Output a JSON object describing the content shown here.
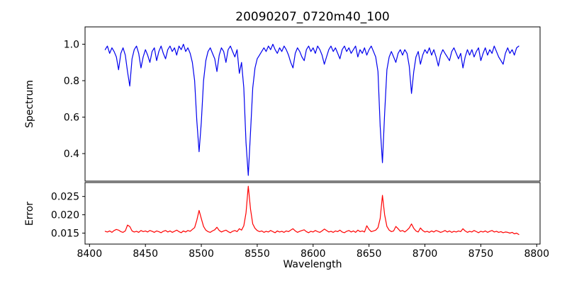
{
  "figure": {
    "background": "#ffffff",
    "axis_color": "#000000"
  },
  "chart_data": [
    {
      "type": "line",
      "title": "20090207_0720m40_100",
      "xlabel": "",
      "ylabel": "Spectrum",
      "grid": false,
      "legend": "none",
      "xlim": [
        8396,
        8803
      ],
      "ylim": [
        0.249,
        1.095
      ],
      "yticks": [
        1.0,
        0.8,
        0.6,
        0.4
      ],
      "ytick_labels": [
        "1.0",
        "0.8",
        "0.6",
        "0.4"
      ],
      "xticks": [],
      "xtick_labels": [],
      "annotations": [
        "strong absorption lines near 8498, 8542, 8662"
      ],
      "series": [
        {
          "name": "spectrum",
          "color": "#0000ee",
          "x_start": 8414,
          "x_step": 2,
          "y": [
            0.97,
            0.99,
            0.95,
            0.98,
            0.96,
            0.93,
            0.86,
            0.95,
            0.98,
            0.94,
            0.85,
            0.77,
            0.92,
            0.97,
            0.99,
            0.95,
            0.87,
            0.93,
            0.97,
            0.94,
            0.9,
            0.96,
            0.98,
            0.91,
            0.96,
            0.99,
            0.95,
            0.92,
            0.97,
            0.99,
            0.96,
            0.98,
            0.94,
            0.99,
            0.97,
            1.0,
            0.96,
            0.98,
            0.95,
            0.9,
            0.8,
            0.58,
            0.41,
            0.57,
            0.8,
            0.91,
            0.96,
            0.98,
            0.95,
            0.92,
            0.85,
            0.94,
            0.98,
            0.96,
            0.9,
            0.97,
            0.99,
            0.96,
            0.93,
            0.97,
            0.84,
            0.9,
            0.76,
            0.46,
            0.28,
            0.52,
            0.76,
            0.87,
            0.92,
            0.94,
            0.96,
            0.98,
            0.96,
            0.99,
            0.97,
            1.0,
            0.97,
            0.95,
            0.98,
            0.96,
            0.99,
            0.97,
            0.94,
            0.9,
            0.87,
            0.95,
            0.98,
            0.96,
            0.93,
            0.91,
            0.97,
            0.99,
            0.96,
            0.98,
            0.95,
            0.99,
            0.97,
            0.94,
            0.89,
            0.93,
            0.97,
            0.99,
            0.96,
            0.98,
            0.95,
            0.92,
            0.97,
            0.99,
            0.96,
            0.98,
            0.95,
            0.97,
            0.99,
            0.93,
            0.97,
            0.95,
            0.98,
            0.94,
            0.97,
            0.99,
            0.96,
            0.93,
            0.85,
            0.55,
            0.35,
            0.62,
            0.86,
            0.93,
            0.96,
            0.93,
            0.9,
            0.95,
            0.97,
            0.94,
            0.97,
            0.95,
            0.88,
            0.73,
            0.85,
            0.93,
            0.96,
            0.89,
            0.94,
            0.97,
            0.95,
            0.98,
            0.94,
            0.97,
            0.93,
            0.88,
            0.94,
            0.97,
            0.95,
            0.93,
            0.91,
            0.96,
            0.98,
            0.95,
            0.92,
            0.95,
            0.87,
            0.93,
            0.97,
            0.94,
            0.97,
            0.93,
            0.96,
            0.98,
            0.91,
            0.95,
            0.98,
            0.94,
            0.97,
            0.95,
            0.99,
            0.96,
            0.93,
            0.91,
            0.89,
            0.95,
            0.98,
            0.95,
            0.97,
            0.94,
            0.98,
            0.99
          ]
        }
      ]
    },
    {
      "type": "line",
      "title": "",
      "xlabel": "Wavelength",
      "ylabel": "Error",
      "grid": false,
      "legend": "none",
      "xlim": [
        8396,
        8803
      ],
      "ylim": [
        0.012,
        0.0288
      ],
      "yticks": [
        0.025,
        0.02,
        0.015
      ],
      "ytick_labels": [
        "0.025",
        "0.020",
        "0.015"
      ],
      "xticks": [
        8400,
        8450,
        8500,
        8550,
        8600,
        8650,
        8700,
        8750,
        8800
      ],
      "xtick_labels": [
        "8400",
        "8450",
        "8500",
        "8550",
        "8600",
        "8650",
        "8700",
        "8750",
        "8800"
      ],
      "annotations": [
        "error peaks near 8498 (0.021), 8542 (0.028), 8662 (0.025); baseline ~0.0155"
      ],
      "series": [
        {
          "name": "error",
          "color": "#ff0000",
          "x_start": 8414,
          "x_step": 2,
          "y": [
            0.0155,
            0.0153,
            0.0156,
            0.0152,
            0.0157,
            0.016,
            0.0158,
            0.0154,
            0.0152,
            0.0156,
            0.0172,
            0.0168,
            0.0156,
            0.0153,
            0.0155,
            0.0152,
            0.0157,
            0.0154,
            0.0156,
            0.0153,
            0.0157,
            0.0155,
            0.0152,
            0.0156,
            0.0154,
            0.0151,
            0.0155,
            0.0157,
            0.0153,
            0.0156,
            0.0152,
            0.0155,
            0.0158,
            0.0154,
            0.0151,
            0.0156,
            0.0153,
            0.0157,
            0.0155,
            0.016,
            0.0165,
            0.0185,
            0.0212,
            0.019,
            0.0168,
            0.0158,
            0.0154,
            0.0152,
            0.0156,
            0.0159,
            0.0166,
            0.0157,
            0.0153,
            0.0156,
            0.0158,
            0.0154,
            0.0151,
            0.0155,
            0.0157,
            0.0154,
            0.0162,
            0.0158,
            0.017,
            0.0205,
            0.0278,
            0.0215,
            0.0175,
            0.0163,
            0.0157,
            0.0154,
            0.0156,
            0.0152,
            0.0155,
            0.0153,
            0.0157,
            0.0154,
            0.0151,
            0.0156,
            0.0153,
            0.0155,
            0.0152,
            0.0156,
            0.0154,
            0.0158,
            0.0162,
            0.0156,
            0.0152,
            0.0155,
            0.0157,
            0.0159,
            0.0154,
            0.0151,
            0.0155,
            0.0153,
            0.0157,
            0.0154,
            0.0152,
            0.0156,
            0.0161,
            0.0157,
            0.0153,
            0.0155,
            0.0152,
            0.0156,
            0.0154,
            0.0158,
            0.0153,
            0.0151,
            0.0155,
            0.0157,
            0.0153,
            0.0156,
            0.0152,
            0.0158,
            0.0154,
            0.0156,
            0.0153,
            0.017,
            0.016,
            0.0154,
            0.0156,
            0.0158,
            0.0165,
            0.019,
            0.0253,
            0.02,
            0.0168,
            0.0158,
            0.0154,
            0.0156,
            0.0168,
            0.0162,
            0.0155,
            0.0157,
            0.0153,
            0.0158,
            0.0164,
            0.0175,
            0.0163,
            0.0156,
            0.0153,
            0.0164,
            0.0157,
            0.0153,
            0.0155,
            0.0152,
            0.0156,
            0.0153,
            0.0157,
            0.0155,
            0.0152,
            0.0154,
            0.0157,
            0.0153,
            0.0156,
            0.0152,
            0.0155,
            0.0153,
            0.0156,
            0.0154,
            0.0162,
            0.0156,
            0.0152,
            0.0155,
            0.0153,
            0.0157,
            0.0154,
            0.0151,
            0.0155,
            0.0153,
            0.0156,
            0.0152,
            0.0155,
            0.0157,
            0.0153,
            0.0155,
            0.0152,
            0.0154,
            0.0151,
            0.0153,
            0.0152,
            0.015,
            0.0152,
            0.0148,
            0.015,
            0.0146
          ]
        }
      ]
    }
  ]
}
